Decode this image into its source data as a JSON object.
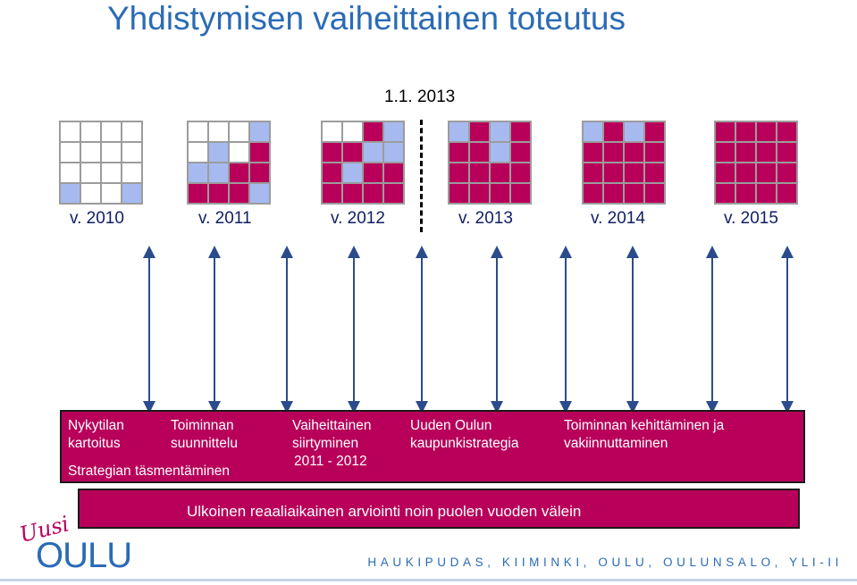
{
  "title": "Yhdistymisen vaiheittainen toteutus",
  "milestone": {
    "label": "1.1. 2013"
  },
  "colors": {
    "title": "#2b6bb5",
    "magenta": "#b8005a",
    "light_blue": "#a6baf0",
    "empty": "#ffffff",
    "grid_line": "#9c9c9c",
    "year_text": "#0f1f63",
    "footer_text": "#2b6bb5"
  },
  "years": [
    {
      "label": "v. 2010",
      "cells": [
        "w",
        "w",
        "w",
        "w",
        "w",
        "w",
        "w",
        "w",
        "w",
        "w",
        "w",
        "w",
        "b",
        "w",
        "w",
        "b"
      ]
    },
    {
      "label": "v. 2011",
      "cells": [
        "w",
        "w",
        "w",
        "b",
        "w",
        "b",
        "w",
        "m",
        "b",
        "b",
        "m",
        "m",
        "m",
        "m",
        "m",
        "b"
      ]
    },
    {
      "label": "v. 2012",
      "cells": [
        "w",
        "w",
        "m",
        "b",
        "m",
        "m",
        "b",
        "b",
        "m",
        "b",
        "m",
        "m",
        "m",
        "m",
        "m",
        "m"
      ]
    },
    {
      "label": "v. 2013",
      "cells": [
        "b",
        "m",
        "b",
        "m",
        "m",
        "m",
        "b",
        "m",
        "m",
        "m",
        "m",
        "m",
        "m",
        "m",
        "m",
        "m"
      ]
    },
    {
      "label": "v. 2014",
      "cells": [
        "b",
        "m",
        "b",
        "m",
        "m",
        "m",
        "m",
        "m",
        "m",
        "m",
        "m",
        "m",
        "m",
        "m",
        "m",
        "m"
      ]
    },
    {
      "label": "v. 2015",
      "cells": [
        "m",
        "m",
        "m",
        "m",
        "m",
        "m",
        "m",
        "m",
        "m",
        "m",
        "m",
        "m",
        "m",
        "m",
        "m",
        "m"
      ]
    }
  ],
  "phases": {
    "current_state": {
      "line1": "Nykytilan",
      "line2": "kartoitus"
    },
    "planning": {
      "line1": "Toiminnan",
      "line2": "suunnittelu"
    },
    "strategy": "Strategian täsmentäminen",
    "transition": {
      "line1": "Vaiheittainen",
      "line2": "siirtyminen",
      "line3": "2011 - 2012"
    },
    "city_strategy": {
      "line1": "Uuden Oulun",
      "line2": "kaupunkistrategia"
    },
    "development": {
      "line1": "Toiminnan kehittäminen ja",
      "line2": "vakiinnuttaminen"
    }
  },
  "evaluation": "Ulkoinen reaaliaikainen arviointi noin puolen vuoden välein",
  "logo": {
    "script": "Uusi",
    "word": "OULU"
  },
  "footer": "HAUKIPUDAS, KIIMINKI, OULU, OULUNSALO, YLI-II"
}
